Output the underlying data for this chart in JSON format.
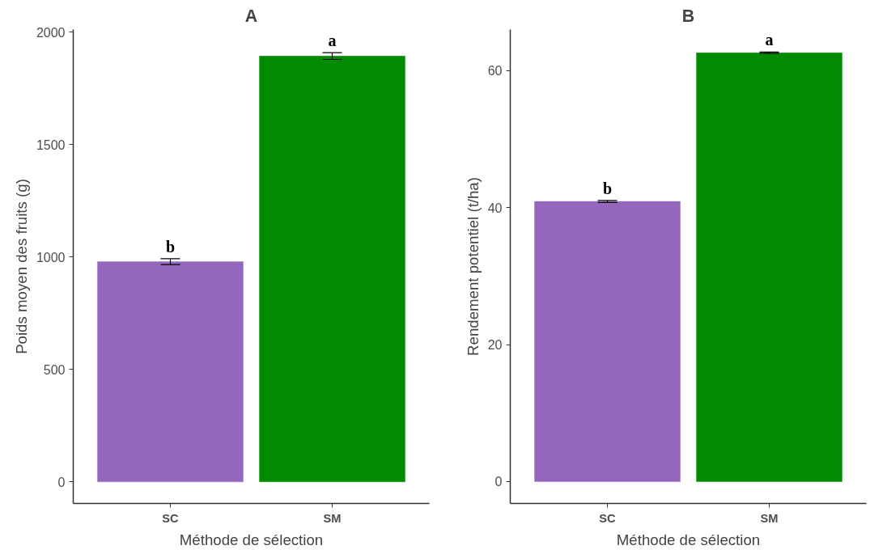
{
  "chart_data": [
    {
      "type": "bar",
      "title": "A",
      "xlabel": "Méthode de sélection",
      "ylabel": "Poids moyen des fruits (g)",
      "categories": [
        "SC",
        "SM"
      ],
      "values": [
        979,
        1893
      ],
      "colors": [
        "#9467bd",
        "#008b00"
      ],
      "errors": [
        13,
        15
      ],
      "ylim": [
        -96,
        2011
      ],
      "yticks": [
        0,
        500,
        1000,
        1500,
        2000
      ],
      "annotations": [
        {
          "text": "b",
          "x": "SC",
          "y": 992
        },
        {
          "text": "a",
          "x": "SM",
          "y": 1908
        }
      ]
    },
    {
      "type": "bar",
      "title": "B",
      "xlabel": "Méthode de sélection",
      "ylabel": "Rendement potentiel (t/ha)",
      "categories": [
        "SC",
        "SM"
      ],
      "values": [
        40.9,
        62.6
      ],
      "colors": [
        "#9467bd",
        "#008b00"
      ],
      "errors": [
        0.15,
        0.1
      ],
      "ylim": [
        -3.2,
        66
      ],
      "yticks": [
        0,
        20,
        40,
        60
      ],
      "annotations": [
        {
          "text": "b",
          "x": "SC",
          "y": 41.05
        },
        {
          "text": "a",
          "x": "SM",
          "y": 62.7
        }
      ]
    }
  ]
}
